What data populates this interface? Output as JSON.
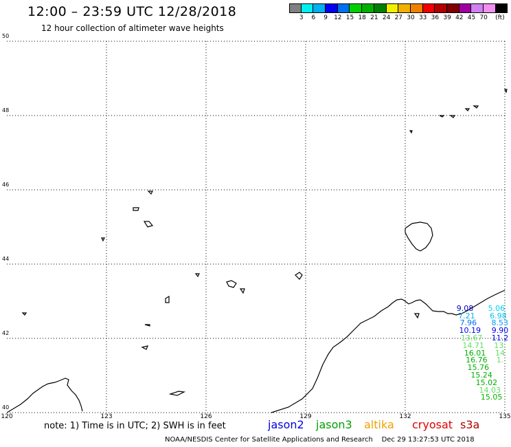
{
  "header": {
    "title": "12:00 – 23:59 UTC 12/28/2018",
    "subtitle": "12 hour collection of altimeter wave heights"
  },
  "color_scale": {
    "colors": [
      "#808080",
      "#00f0f0",
      "#00b0f0",
      "#0000f0",
      "#0070f0",
      "#00d000",
      "#00b000",
      "#008000",
      "#f0f000",
      "#f0b000",
      "#f08000",
      "#f00000",
      "#b00000",
      "#800000",
      "#a000a0",
      "#d080f0",
      "#f090f0",
      "#000000"
    ],
    "labels": [
      "3",
      "6",
      "9",
      "12",
      "15",
      "18",
      "21",
      "24",
      "27",
      "30",
      "33",
      "36",
      "39",
      "42",
      "45",
      "70",
      "(ft)"
    ]
  },
  "map": {
    "lat_ticks": [
      "50",
      "48",
      "46",
      "44",
      "42",
      "40"
    ],
    "lon_ticks": [
      "120",
      "123",
      "126",
      "129",
      "132",
      "135"
    ]
  },
  "wave_heights": [
    {
      "value": "9.08",
      "color": "#0000c8",
      "lon": 133.8,
      "lat": 42.8
    },
    {
      "value": "7.21",
      "color": "#00b0f0",
      "lon": 133.85,
      "lat": 42.6
    },
    {
      "value": "7.96",
      "color": "#0070f0",
      "lon": 133.9,
      "lat": 42.4
    },
    {
      "value": "10.19",
      "color": "#0000f0",
      "lon": 133.95,
      "lat": 42.2
    },
    {
      "value": "13.67",
      "color": "#60e060",
      "lon": 134.0,
      "lat": 42.0
    },
    {
      "value": "14.71",
      "color": "#60e060",
      "lon": 134.05,
      "lat": 41.8
    },
    {
      "value": "16.01",
      "color": "#00b000",
      "lon": 134.1,
      "lat": 41.6
    },
    {
      "value": "16.76",
      "color": "#00b000",
      "lon": 134.15,
      "lat": 41.4
    },
    {
      "value": "15.76",
      "color": "#00b000",
      "lon": 134.2,
      "lat": 41.2
    },
    {
      "value": "15.24",
      "color": "#00b000",
      "lon": 134.3,
      "lat": 41.0
    },
    {
      "value": "15.02",
      "color": "#00b000",
      "lon": 134.45,
      "lat": 40.8
    },
    {
      "value": "14.03",
      "color": "#60e060",
      "lon": 134.55,
      "lat": 40.6
    },
    {
      "value": "15.05",
      "color": "#00b000",
      "lon": 134.6,
      "lat": 40.4
    },
    {
      "value": "5.06",
      "color": "#00d0f0",
      "lon": 134.75,
      "lat": 42.8
    },
    {
      "value": "6.98",
      "color": "#00c0f0",
      "lon": 134.8,
      "lat": 42.6
    },
    {
      "value": "8.53",
      "color": "#00a0f0",
      "lon": 134.85,
      "lat": 42.4
    },
    {
      "value": "9.90",
      "color": "#0000f0",
      "lon": 134.9,
      "lat": 42.2
    },
    {
      "value": "11.2",
      "color": "#0000f0",
      "lon": 134.95,
      "lat": 42.0
    },
    {
      "value": "13.",
      "color": "#60e060",
      "lon": 134.95,
      "lat": 41.8
    },
    {
      "value": "14",
      "color": "#60e060",
      "lon": 134.98,
      "lat": 41.6
    },
    {
      "value": "1.",
      "color": "#60e060",
      "lon": 134.99,
      "lat": 41.4
    }
  ],
  "footer": {
    "note": "note: 1) Time is in UTC; 2) SWH is in feet",
    "satellites": [
      {
        "name": "jason2",
        "color": "#0000e0"
      },
      {
        "name": "jason3",
        "color": "#00a000"
      },
      {
        "name": "altika",
        "color": "#f0a000"
      },
      {
        "name": "cryosat",
        "color": "#e00000"
      },
      {
        "name": "s3a",
        "color": "#b00000"
      }
    ],
    "credit": "NOAA/NESDIS Center for Satellite Applications and Research",
    "timestamp": "Dec 29 13:27:53 UTC 2018"
  }
}
